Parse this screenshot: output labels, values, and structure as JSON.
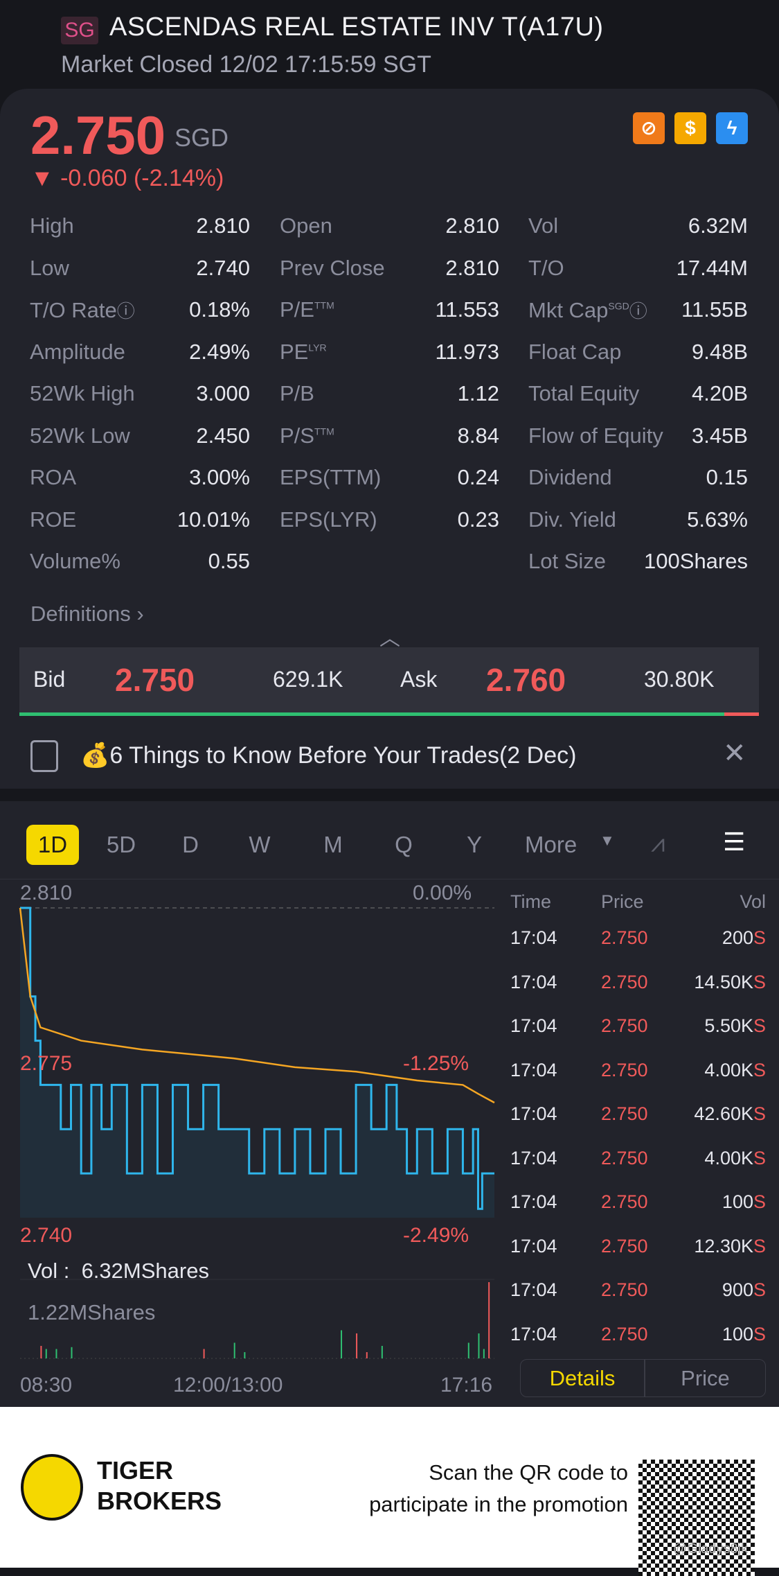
{
  "header": {
    "market_badge": "SG",
    "title": "ASCENDAS REAL ESTATE INV T(A17U)",
    "status": "Market Closed 12/02 17:15:59 SGT"
  },
  "quote": {
    "price": "2.750",
    "currency": "SGD",
    "change": "-0.060 (-2.14%)",
    "direction_icon": "triangle-down",
    "badges": [
      "no-short-icon",
      "dollar-icon",
      "lightning-level1-icon"
    ]
  },
  "stats": [
    [
      {
        "label": "High",
        "value": "2.810"
      },
      {
        "label": "Open",
        "value": "2.810"
      },
      {
        "label": "Vol",
        "value": "6.32M"
      }
    ],
    [
      {
        "label": "Low",
        "value": "2.740"
      },
      {
        "label": "Prev Close",
        "value": "2.810"
      },
      {
        "label": "T/O",
        "value": "17.44M"
      }
    ],
    [
      {
        "label": "T/O Rate",
        "value": "0.18%",
        "info": true
      },
      {
        "label": "P/E",
        "sup": "TTM",
        "value": "11.553"
      },
      {
        "label": "Mkt Cap",
        "sup": "SGD",
        "info": true,
        "value": "11.55B"
      }
    ],
    [
      {
        "label": "Amplitude",
        "value": "2.49%"
      },
      {
        "label": "PE",
        "sup": "LYR",
        "value": "11.973"
      },
      {
        "label": "Float Cap",
        "value": "9.48B"
      }
    ],
    [
      {
        "label": "52Wk High",
        "value": "3.000"
      },
      {
        "label": "P/B",
        "value": "1.12"
      },
      {
        "label": "Total Equity",
        "value": "4.20B"
      }
    ],
    [
      {
        "label": "52Wk Low",
        "value": "2.450"
      },
      {
        "label": "P/S",
        "sup": "TTM",
        "value": "8.84"
      },
      {
        "label": "Flow of Equity",
        "value": "3.45B"
      }
    ],
    [
      {
        "label": "ROA",
        "value": "3.00%"
      },
      {
        "label": "EPS(TTM)",
        "value": "0.24"
      },
      {
        "label": "Dividend",
        "value": "0.15"
      }
    ],
    [
      {
        "label": "ROE",
        "value": "10.01%"
      },
      {
        "label": "EPS(LYR)",
        "value": "0.23"
      },
      {
        "label": "Div. Yield",
        "value": "5.63%"
      }
    ],
    [
      {
        "label": "Volume%",
        "value": "0.55"
      },
      null,
      {
        "label": "Lot Size",
        "value": "100Shares"
      }
    ]
  ],
  "definitions": "Definitions",
  "bidask": {
    "bid_label": "Bid",
    "bid": "2.750",
    "bid_vol": "629.1K",
    "ask_label": "Ask",
    "ask": "2.760",
    "ask_vol": "30.80K",
    "bid_ratio": 0.953
  },
  "news": {
    "emoji": "💰",
    "text": "6 Things to Know Before Your Trades(2 Dec)"
  },
  "tabs": [
    "1D",
    "5D",
    "D",
    "W",
    "M",
    "Q",
    "Y",
    "More"
  ],
  "active_tab": "1D",
  "chart_labels": {
    "top_price": "2.810",
    "top_pct": "0.00%",
    "mid_price": "2.775",
    "mid_pct": "-1.25%",
    "low_price": "2.740",
    "low_pct": "-2.49%",
    "vol_label": "Vol :",
    "vol_value": "6.32MShares",
    "vol_max": "1.22MShares",
    "x_start": "08:30",
    "x_mid": "12:00/13:00",
    "x_end": "17:16"
  },
  "chart_data": {
    "type": "line",
    "ylim": [
      2.74,
      2.81
    ],
    "xlim": [
      "08:30",
      "17:16"
    ],
    "price": [
      [
        "08:30",
        2.81
      ],
      [
        "08:35",
        2.81
      ],
      [
        "08:40",
        2.79
      ],
      [
        "08:45",
        2.78
      ],
      [
        "08:50",
        2.77
      ],
      [
        "09:00",
        2.77
      ],
      [
        "09:10",
        2.76
      ],
      [
        "09:20",
        2.77
      ],
      [
        "09:30",
        2.75
      ],
      [
        "09:40",
        2.77
      ],
      [
        "09:50",
        2.76
      ],
      [
        "10:00",
        2.77
      ],
      [
        "10:15",
        2.75
      ],
      [
        "10:30",
        2.77
      ],
      [
        "10:45",
        2.75
      ],
      [
        "11:00",
        2.77
      ],
      [
        "11:15",
        2.76
      ],
      [
        "11:30",
        2.77
      ],
      [
        "11:45",
        2.76
      ],
      [
        "12:00",
        2.76
      ],
      [
        "13:00",
        2.76
      ],
      [
        "13:15",
        2.75
      ],
      [
        "13:30",
        2.76
      ],
      [
        "13:45",
        2.75
      ],
      [
        "14:00",
        2.76
      ],
      [
        "14:15",
        2.75
      ],
      [
        "14:30",
        2.76
      ],
      [
        "14:45",
        2.75
      ],
      [
        "15:00",
        2.77
      ],
      [
        "15:15",
        2.76
      ],
      [
        "15:30",
        2.77
      ],
      [
        "15:40",
        2.76
      ],
      [
        "15:50",
        2.75
      ],
      [
        "16:00",
        2.76
      ],
      [
        "16:15",
        2.75
      ],
      [
        "16:30",
        2.76
      ],
      [
        "16:45",
        2.75
      ],
      [
        "16:55",
        2.76
      ],
      [
        "17:00",
        2.742
      ],
      [
        "17:04",
        2.75
      ],
      [
        "17:16",
        2.75
      ]
    ],
    "avg": [
      [
        "08:30",
        2.81
      ],
      [
        "08:40",
        2.79
      ],
      [
        "08:50",
        2.783
      ],
      [
        "09:30",
        2.78
      ],
      [
        "10:30",
        2.778
      ],
      [
        "12:00",
        2.776
      ],
      [
        "13:00",
        2.776
      ],
      [
        "14:00",
        2.774
      ],
      [
        "15:00",
        2.773
      ],
      [
        "16:00",
        2.771
      ],
      [
        "16:45",
        2.77
      ],
      [
        "17:00",
        2.768
      ],
      [
        "17:16",
        2.766
      ]
    ],
    "volume": [
      [
        "08:50",
        0.2,
        "up"
      ],
      [
        "08:55",
        0.15,
        "down"
      ],
      [
        "09:05",
        0.15,
        "down"
      ],
      [
        "09:20",
        0.18,
        "down"
      ],
      [
        "11:30",
        0.15,
        "up"
      ],
      [
        "12:00",
        0.25,
        "down"
      ],
      [
        "13:10",
        0.1,
        "down"
      ],
      [
        "14:45",
        0.45,
        "down"
      ],
      [
        "15:00",
        0.4,
        "up"
      ],
      [
        "15:10",
        0.1,
        "up"
      ],
      [
        "15:25",
        0.2,
        "down"
      ],
      [
        "16:50",
        0.25,
        "down"
      ],
      [
        "17:00",
        0.4,
        "down"
      ],
      [
        "17:05",
        0.15,
        "down"
      ],
      [
        "17:10",
        1.22,
        "up"
      ]
    ]
  },
  "trades": {
    "headers": [
      "Time",
      "Price",
      "Vol"
    ],
    "rows": [
      [
        "17:04",
        "2.750",
        "200"
      ],
      [
        "17:04",
        "2.750",
        "14.50K"
      ],
      [
        "17:04",
        "2.750",
        "5.50K"
      ],
      [
        "17:04",
        "2.750",
        "4.00K"
      ],
      [
        "17:04",
        "2.750",
        "42.60K"
      ],
      [
        "17:04",
        "2.750",
        "4.00K"
      ],
      [
        "17:04",
        "2.750",
        "100"
      ],
      [
        "17:04",
        "2.750",
        "12.30K"
      ],
      [
        "17:04",
        "2.750",
        "900"
      ],
      [
        "17:04",
        "2.750",
        "100"
      ]
    ],
    "suffix": "S"
  },
  "trade_buttons": {
    "details": "Details",
    "price": "Price"
  },
  "footer": {
    "brand_line1": "TIGER",
    "brand_line2": "BROKERS",
    "promo_line1": "Scan the QR code to",
    "promo_line2": "participate in the promotion",
    "watermark": "@Gladys8jk"
  },
  "colors": {
    "up": "#f05a5a",
    "down": "#2fbf71",
    "accent": "#f5d800",
    "price_line": "#2fb6ec",
    "avg_line": "#f5a623"
  }
}
